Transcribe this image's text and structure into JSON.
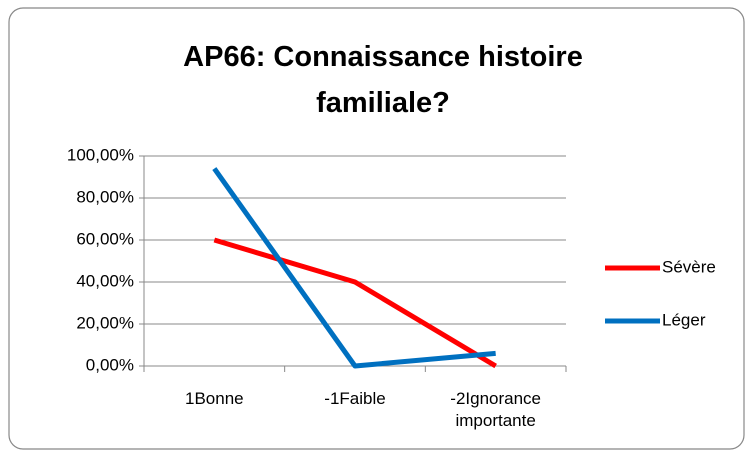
{
  "chart_data": {
    "type": "line",
    "title": "AP66: Connaissance histoire familiale?",
    "categories": [
      "1Bonne",
      "-1Faible",
      "-2Ignorance importante"
    ],
    "series": [
      {
        "name": "Sévère",
        "color": "#ff0000",
        "values": [
          60,
          40,
          0
        ]
      },
      {
        "name": "Léger",
        "color": "#0070c0",
        "values": [
          94,
          0,
          6
        ]
      }
    ],
    "ylim": [
      0,
      100
    ],
    "yticks": [
      {
        "value": 0,
        "label": "0,00%"
      },
      {
        "value": 20,
        "label": "20,00%"
      },
      {
        "value": 40,
        "label": "40,00%"
      },
      {
        "value": 60,
        "label": "60,00%"
      },
      {
        "value": 80,
        "label": "80,00%"
      },
      {
        "value": 100,
        "label": "100,00%"
      }
    ],
    "grid": true,
    "legend": "right"
  }
}
